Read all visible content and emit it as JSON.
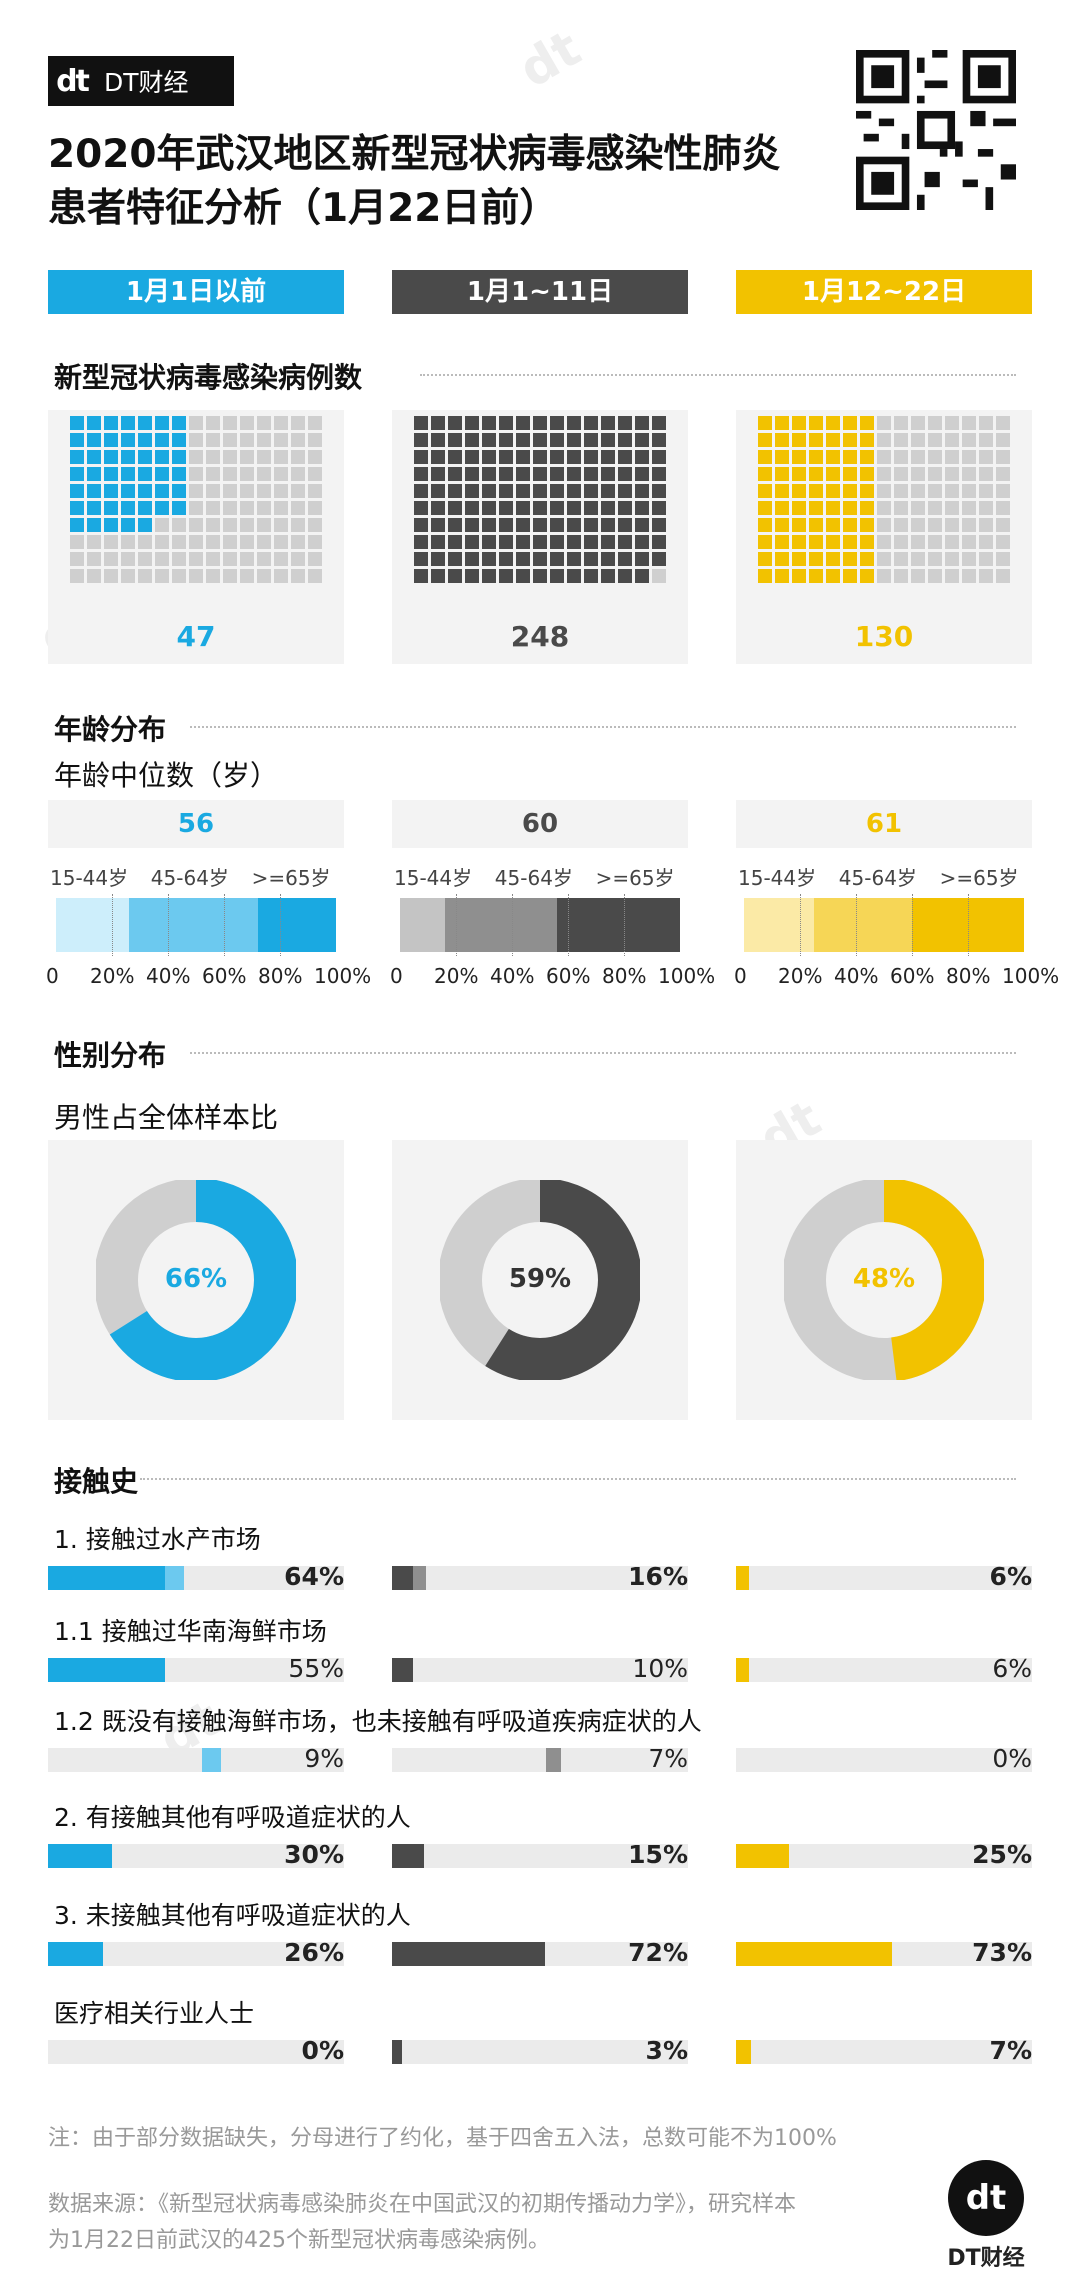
{
  "brand": {
    "mark": "dt",
    "name": "DT财经"
  },
  "title_line1": "2020年武汉地区新型冠状病毒感染性肺炎",
  "title_line2": "患者特征分析（1月22日前）",
  "periods": [
    {
      "label": "1月1日以前",
      "color": "#1aa9e1"
    },
    {
      "label": "1月1~11日",
      "color": "#4a4a4a"
    },
    {
      "label": "1月12~22日",
      "color": "#f2c200"
    }
  ],
  "sections": {
    "cases": "新型冠状病毒感染病例数",
    "age": "年龄分布",
    "age_median": "年龄中位数（岁）",
    "gender": "性别分布",
    "male_ratio": "男性占全体样本比",
    "contact": "接触史"
  },
  "age_groups": [
    "15-44岁",
    "45-64岁",
    ">=65岁"
  ],
  "age_ticks": [
    "0",
    "20%",
    "40%",
    "60%",
    "80%",
    "100%"
  ],
  "chart_data": [
    {
      "type": "waffle",
      "title": "新型冠状病毒感染病例数",
      "categories": [
        "1月1日以前",
        "1月1~11日",
        "1月12~22日"
      ],
      "values": [
        47,
        248,
        130
      ],
      "labels": [
        "47",
        "248",
        "130"
      ]
    },
    {
      "type": "bar",
      "title": "年龄中位数（岁）",
      "categories": [
        "1月1日以前",
        "1月1~11日",
        "1月12~22日"
      ],
      "values": [
        56,
        60,
        61
      ],
      "labels": [
        "56",
        "60",
        "61"
      ]
    },
    {
      "type": "bar",
      "stacked": true,
      "title": "年龄分布",
      "categories": [
        "1月1日以前",
        "1月1~11日",
        "1月12~22日"
      ],
      "series": [
        {
          "name": "15-44岁",
          "values": [
            26,
            16,
            25
          ]
        },
        {
          "name": "45-64岁",
          "values": [
            46,
            40,
            35
          ]
        },
        {
          "name": ">=65岁",
          "values": [
            28,
            44,
            40
          ]
        }
      ],
      "xlim": [
        0,
        100
      ]
    },
    {
      "type": "pie",
      "title": "男性占全体样本比",
      "categories": [
        "1月1日以前",
        "1月1~11日",
        "1月12~22日"
      ],
      "values": [
        66,
        59,
        48
      ],
      "labels": [
        "66%",
        "59%",
        "48%"
      ]
    },
    {
      "type": "bar",
      "title": "接触史",
      "categories": [
        "1月1日以前",
        "1月1~11日",
        "1月12~22日"
      ],
      "rows": [
        {
          "label": "1. 接触过水产市场",
          "values": [
            64,
            16,
            6
          ],
          "labels": [
            "64%",
            "16%",
            "6%"
          ],
          "bold": true
        },
        {
          "label": "1.1 接触过华南海鲜市场",
          "values": [
            55,
            10,
            6
          ],
          "labels": [
            "55%",
            "10%",
            "6%"
          ],
          "bold": false
        },
        {
          "label": "1.2 既没有接触海鲜市场，也未接触有呼吸道疾病症状的人",
          "values": [
            9,
            7,
            0
          ],
          "labels": [
            "9%",
            "7%",
            "0%"
          ],
          "bold": false
        },
        {
          "label": "2. 有接触其他有呼吸道症状的人",
          "values": [
            30,
            15,
            25
          ],
          "labels": [
            "30%",
            "15%",
            "25%"
          ],
          "bold": true
        },
        {
          "label": "3. 未接触其他有呼吸道症状的人",
          "values": [
            26,
            72,
            73
          ],
          "labels": [
            "26%",
            "72%",
            "73%"
          ],
          "bold": true
        },
        {
          "label": "医疗相关行业人士",
          "values": [
            0,
            3,
            7
          ],
          "labels": [
            "0%",
            "3%",
            "7%"
          ],
          "bold": true
        }
      ]
    }
  ],
  "note": "注：由于部分数据缺失，分母进行了约化，基于四舍五入法，总数可能不为100%",
  "source_line1": "数据来源：《新型冠状病毒感染肺炎在中国武汉的初期传播动力学》，研究样本",
  "source_line2": "为1月22日前武汉的425个新型冠状病毒感染病例。",
  "footer_brand": "DT财经"
}
